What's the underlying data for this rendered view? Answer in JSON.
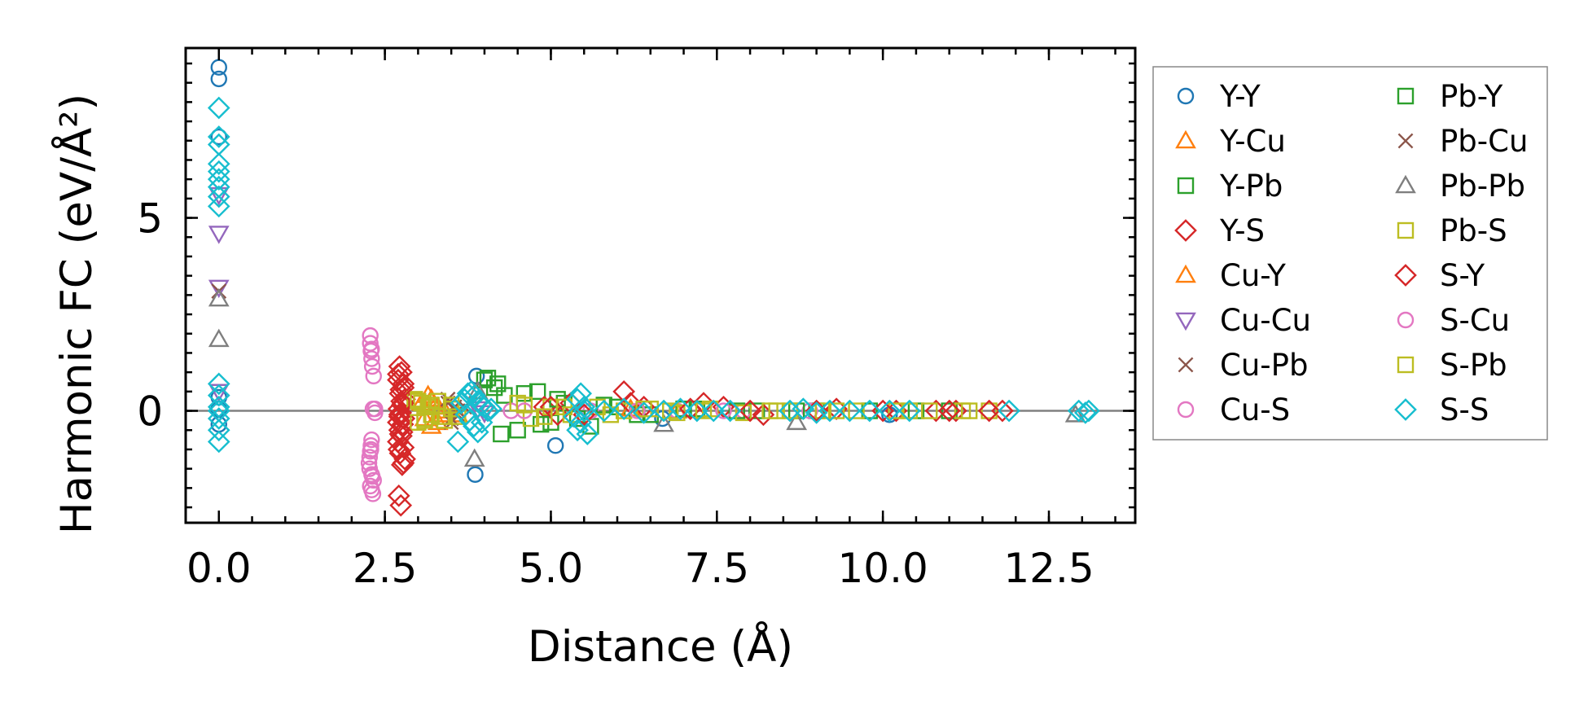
{
  "chart_data": {
    "type": "scatter",
    "xlabel": "Distance (Å)",
    "ylabel": "Harmonic FC (eV/Å²)",
    "xlim": [
      -0.5,
      13.8
    ],
    "ylim": [
      -2.9,
      9.4
    ],
    "x_ticks": [
      0.0,
      2.5,
      5.0,
      7.5,
      10.0,
      12.5
    ],
    "x_tick_labels": [
      "0.0",
      "2.5",
      "5.0",
      "7.5",
      "10.0",
      "12.5"
    ],
    "y_ticks": [
      0,
      5
    ],
    "y_tick_labels": [
      "0",
      "5"
    ],
    "grid": false,
    "zero_line": true,
    "legend_position": "outside-right",
    "series": [
      {
        "name": "Y-Y",
        "marker": "circle",
        "color": "#1f77b4",
        "x": [
          0.0,
          0.0,
          0.0,
          0.0,
          0.0,
          0.0,
          3.88,
          3.86,
          5.07,
          6.68,
          10.1
        ],
        "y": [
          8.9,
          8.6,
          7.1,
          0.35,
          0.05,
          -0.35,
          0.9,
          -1.65,
          -0.9,
          -0.2,
          -0.1
        ]
      },
      {
        "name": "Y-Cu",
        "marker": "triangle-up",
        "color": "#ff7f0e",
        "x": [
          3.2,
          3.3,
          3.25,
          3.35,
          3.4
        ],
        "y": [
          0.3,
          -0.3,
          0.1,
          -0.1,
          0.0
        ]
      },
      {
        "name": "Y-Pb",
        "marker": "square",
        "color": "#2ca02c",
        "x": [
          4.0,
          4.2,
          4.3,
          4.5,
          4.8,
          5.0,
          5.2,
          5.6,
          6.0,
          6.5,
          7.2,
          8.1,
          9.0,
          10.5
        ],
        "y": [
          0.8,
          0.7,
          0.4,
          -0.5,
          0.5,
          -0.3,
          0.2,
          -0.4,
          0.1,
          -0.1,
          0.05,
          0.0,
          0.0,
          0.0
        ]
      },
      {
        "name": "Y-S",
        "marker": "diamond",
        "color": "#d62728",
        "x": [
          2.72,
          2.75,
          2.7,
          2.78,
          2.73,
          2.8,
          2.76,
          2.71,
          2.74,
          2.79,
          2.77,
          2.72,
          2.75,
          2.7,
          2.78,
          2.73,
          2.8,
          2.76,
          2.71,
          2.74,
          2.72,
          2.75,
          2.7,
          2.78,
          2.73,
          4.9,
          5.1,
          5.3,
          6.1,
          6.4,
          7.3,
          7.6,
          8.2,
          9.3,
          10.2,
          10.8,
          11.1,
          11.8
        ],
        "y": [
          1.15,
          1.0,
          0.8,
          0.6,
          0.45,
          0.3,
          0.15,
          0.05,
          -0.05,
          -0.2,
          -0.35,
          -0.5,
          -0.65,
          -0.8,
          -0.95,
          -1.1,
          -1.25,
          -1.4,
          -2.2,
          -2.45,
          -0.1,
          0.25,
          -0.3,
          0.7,
          -0.6,
          0.1,
          -0.1,
          0.2,
          0.5,
          0.1,
          0.2,
          0.1,
          -0.1,
          0.05,
          0.0,
          0.0,
          0.0,
          0.0
        ]
      },
      {
        "name": "Cu-Y",
        "marker": "triangle-up",
        "color": "#ff7f0e",
        "x": [
          3.05,
          3.1,
          3.15,
          3.2,
          3.3,
          3.6,
          6.2,
          6.9
        ],
        "y": [
          0.2,
          -0.2,
          0.4,
          -0.4,
          0.1,
          -0.1,
          0.05,
          0.0
        ]
      },
      {
        "name": "Cu-Cu",
        "marker": "triangle-down",
        "color": "#9467bd",
        "x": [
          0.0,
          0.0,
          0.0,
          0.0,
          3.9,
          4.0
        ],
        "y": [
          5.6,
          4.6,
          3.2,
          0.5,
          0.05,
          -0.05
        ]
      },
      {
        "name": "Cu-Pb",
        "marker": "x",
        "color": "#8c564b",
        "x": [
          0.0,
          3.45,
          3.5,
          3.55,
          3.6
        ],
        "y": [
          3.1,
          0.3,
          -0.3,
          0.1,
          -0.1
        ]
      },
      {
        "name": "Cu-S",
        "marker": "circle",
        "color": "#e377c2",
        "x": [
          2.28,
          2.28,
          2.29,
          2.3,
          2.31,
          2.33,
          2.35,
          2.35,
          2.3,
          2.29,
          2.28,
          2.27,
          2.26,
          2.27,
          2.3,
          2.33,
          2.28,
          2.3,
          2.32,
          4.4,
          5.6,
          6.9,
          7.9,
          8.9
        ],
        "y": [
          1.95,
          1.75,
          1.55,
          1.35,
          1.15,
          0.9,
          0.05,
          -0.05,
          -0.75,
          -0.9,
          -1.05,
          -1.2,
          -1.35,
          -1.5,
          -1.65,
          -1.8,
          -1.95,
          -2.05,
          -2.15,
          0.0,
          0.0,
          0.0,
          0.0,
          0.0
        ]
      },
      {
        "name": "Pb-Y",
        "marker": "square",
        "color": "#2ca02c",
        "x": [
          4.05,
          4.15,
          4.25,
          4.6,
          4.85,
          5.1,
          5.4,
          5.8,
          6.3,
          7.0,
          7.8,
          8.7,
          9.8,
          11.0
        ],
        "y": [
          0.85,
          0.6,
          -0.6,
          0.45,
          -0.35,
          0.3,
          -0.2,
          0.15,
          -0.1,
          0.05,
          0.0,
          0.0,
          0.0,
          0.0
        ]
      },
      {
        "name": "Pb-Cu",
        "marker": "x",
        "color": "#8c564b",
        "x": [
          3.45,
          3.5,
          3.6,
          3.7
        ],
        "y": [
          0.2,
          -0.2,
          0.0,
          0.1
        ]
      },
      {
        "name": "Pb-Pb",
        "marker": "triangle-up",
        "color": "#7f7f7f",
        "x": [
          0.0,
          0.0,
          3.85,
          3.9,
          6.7,
          8.7,
          12.9
        ],
        "y": [
          2.9,
          1.85,
          -1.25,
          0.5,
          -0.35,
          -0.3,
          -0.1
        ]
      },
      {
        "name": "Pb-S",
        "marker": "square",
        "color": "#bcbd22",
        "x": [
          2.95,
          3.0,
          3.05,
          3.1,
          3.15,
          3.2,
          3.3,
          3.4,
          3.5,
          3.6,
          4.5,
          4.7,
          5.0,
          5.3,
          5.7,
          6.1,
          6.5,
          6.9,
          7.4,
          7.9,
          8.3,
          8.6,
          9.1,
          9.6,
          10.2,
          10.7,
          11.2,
          11.6
        ],
        "y": [
          0.3,
          -0.3,
          0.2,
          -0.2,
          0.1,
          -0.1,
          0.25,
          -0.25,
          0.15,
          -0.15,
          0.2,
          -0.2,
          0.1,
          -0.1,
          0.1,
          0.0,
          0.05,
          -0.05,
          0.05,
          -0.05,
          0.0,
          0.0,
          0.0,
          0.0,
          0.0,
          0.0,
          0.0,
          0.0
        ]
      },
      {
        "name": "S-Y",
        "marker": "diamond",
        "color": "#d62728",
        "x": [
          2.7,
          2.74,
          2.77,
          2.72,
          2.76,
          2.71,
          2.78,
          5.0,
          5.5,
          6.2,
          7.1,
          8.0,
          9.0,
          10.0,
          11.0,
          11.6
        ],
        "y": [
          0.95,
          0.55,
          0.2,
          -0.15,
          -0.55,
          -1.0,
          -1.35,
          0.1,
          -0.1,
          0.2,
          0.05,
          0.0,
          0.0,
          0.0,
          0.0,
          0.0
        ]
      },
      {
        "name": "S-Cu",
        "marker": "circle",
        "color": "#e377c2",
        "x": [
          2.3,
          2.32,
          2.29,
          2.31,
          4.6,
          6.3,
          7.6
        ],
        "y": [
          1.6,
          0.05,
          -1.0,
          -1.7,
          0.0,
          0.0,
          0.0
        ]
      },
      {
        "name": "S-Pb",
        "marker": "square",
        "color": "#bcbd22",
        "x": [
          3.0,
          3.1,
          3.2,
          3.35,
          3.5,
          4.6,
          4.9,
          5.2,
          5.9,
          6.4,
          6.8,
          7.3,
          8.4,
          9.3,
          10.4,
          11.3
        ],
        "y": [
          0.25,
          -0.25,
          0.15,
          -0.15,
          0.05,
          0.15,
          -0.15,
          0.1,
          -0.1,
          0.05,
          0.0,
          0.0,
          0.0,
          0.0,
          0.0,
          0.0
        ]
      },
      {
        "name": "S-S",
        "marker": "diamond",
        "color": "#17becf",
        "x": [
          0.0,
          0.0,
          0.0,
          0.0,
          0.0,
          0.0,
          0.0,
          0.0,
          0.0,
          0.0,
          0.0,
          0.0,
          0.0,
          0.0,
          0.0,
          0.0,
          3.65,
          3.7,
          3.75,
          3.8,
          3.85,
          3.9,
          3.95,
          4.0,
          4.05,
          3.72,
          3.78,
          3.84,
          3.9,
          3.96,
          3.6,
          4.1,
          5.4,
          5.45,
          5.5,
          5.35,
          5.55,
          5.45,
          5.4,
          5.5,
          5.8,
          6.1,
          6.4,
          6.7,
          6.95,
          7.2,
          7.45,
          7.7,
          8.6,
          8.8,
          9.0,
          9.2,
          9.5,
          9.8,
          10.1,
          10.4,
          11.9,
          12.95,
          13.05,
          13.1
        ],
        "y": [
          7.85,
          7.1,
          6.9,
          6.4,
          6.2,
          6.0,
          5.8,
          5.55,
          5.3,
          0.7,
          0.4,
          0.1,
          -0.2,
          -0.5,
          -0.8,
          0.0,
          0.2,
          0.3,
          0.45,
          0.5,
          0.4,
          0.25,
          0.15,
          0.1,
          0.0,
          -0.1,
          -0.25,
          -0.4,
          -0.55,
          -0.3,
          -0.8,
          0.05,
          0.3,
          -0.3,
          0.1,
          -0.15,
          -0.6,
          0.45,
          -0.5,
          0.0,
          0.0,
          0.05,
          -0.05,
          0.0,
          0.05,
          0.0,
          0.0,
          0.0,
          0.0,
          0.05,
          -0.05,
          0.0,
          0.0,
          0.0,
          0.0,
          0.0,
          0.0,
          0.0,
          -0.05,
          0.0
        ]
      }
    ]
  }
}
